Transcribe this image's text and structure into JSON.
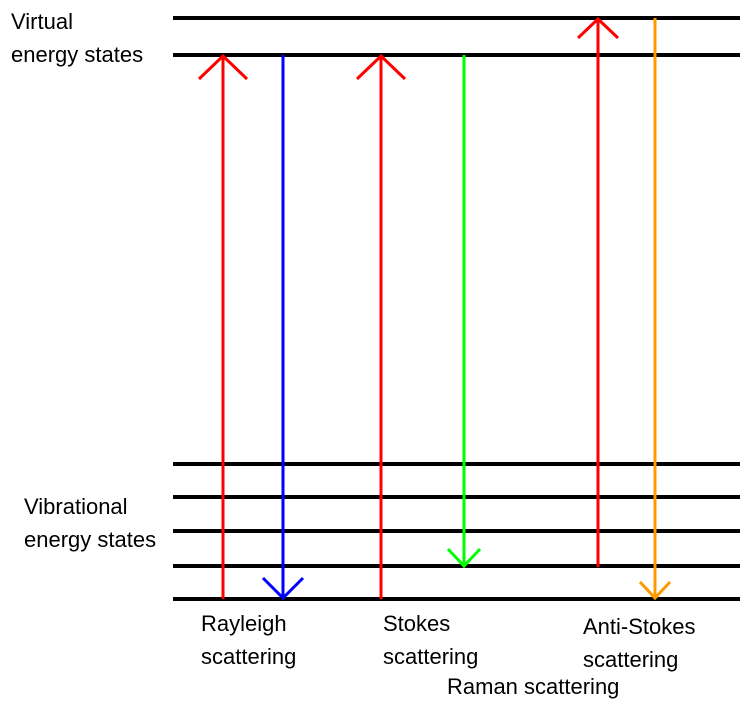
{
  "labels": {
    "virtual_line1": "Virtual",
    "virtual_line2": "energy states",
    "vibrational_line1": "Vibrational",
    "vibrational_line2": "energy states",
    "rayleigh_line1": "Rayleigh",
    "rayleigh_line2": "scattering",
    "stokes_line1": "Stokes",
    "stokes_line2": "scattering",
    "antistokes_line1": "Anti-Stokes",
    "antistokes_line2": "scattering",
    "raman": "Raman scattering"
  },
  "colors": {
    "level": "#000000",
    "excitation": "#ff0000",
    "rayleigh": "#0000ff",
    "stokes": "#00ff00",
    "antistokes": "#ff9900"
  }
}
